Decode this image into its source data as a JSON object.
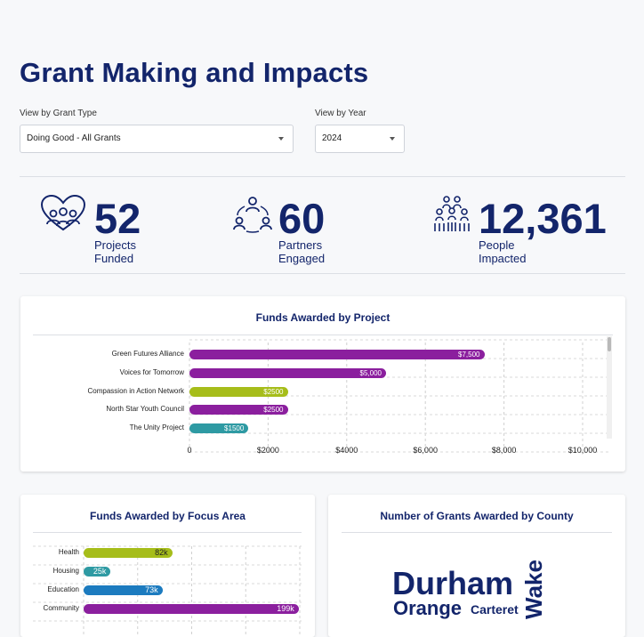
{
  "header": {
    "title": "Grant Making and Impacts"
  },
  "filters": {
    "grant_type": {
      "label": "View by Grant Type",
      "value": "Doing Good - All Grants"
    },
    "year": {
      "label": "View by Year",
      "value": "2024"
    }
  },
  "stats": [
    {
      "value": "52",
      "label": "Projects Funded",
      "icon": "heart-people-icon"
    },
    {
      "value": "60",
      "label": "Partners Engaged",
      "icon": "network-people-icon"
    },
    {
      "value": "12,361",
      "label": "People Impacted",
      "icon": "crowd-icon"
    }
  ],
  "colors": {
    "purple": "#8b1f9e",
    "green": "#a6bd1a",
    "teal": "#2e9aa3",
    "blue": "#1c7bbf",
    "navy": "#13256b"
  },
  "project_chart": {
    "title": "Funds Awarded by Project",
    "type": "bar",
    "xlim": [
      0,
      10000
    ],
    "ticks": [
      "0",
      "$2000",
      "$4000",
      "$6,000",
      "$8,000",
      "$10,000"
    ],
    "rows": [
      {
        "label": "Green Futures Alliance",
        "value": 7500,
        "display": "$7,500",
        "color": "#8b1f9e"
      },
      {
        "label": "Voices for Tomorrow",
        "value": 5000,
        "display": "$5,000",
        "color": "#8b1f9e"
      },
      {
        "label": "Compassion in Action Network",
        "value": 2500,
        "display": "$2500",
        "color": "#a6bd1a"
      },
      {
        "label": "North Star Youth Council",
        "value": 2500,
        "display": "$2500",
        "color": "#8b1f9e"
      },
      {
        "label": "The Unity Project",
        "value": 1500,
        "display": "$1500",
        "color": "#2e9aa3"
      }
    ]
  },
  "focus_chart": {
    "title": "Funds Awarded by Focus Area",
    "type": "bar",
    "xlim": [
      0,
      200000
    ],
    "rows": [
      {
        "label": "Health",
        "value": 82000,
        "display": "82k",
        "color": "#a6bd1a",
        "text_color": "#222222"
      },
      {
        "label": "Housing",
        "value": 25000,
        "display": "25k",
        "color": "#2e9aa3",
        "text_color": "#ffffff"
      },
      {
        "label": "Education",
        "value": 73000,
        "display": "73k",
        "color": "#1c7bbf",
        "text_color": "#ffffff"
      },
      {
        "label": "Community",
        "value": 199000,
        "display": "199k",
        "color": "#8b1f9e",
        "text_color": "#ffffff"
      }
    ]
  },
  "county_cloud": {
    "title": "Number of Grants Awarded by County",
    "words": [
      "Durham",
      "Orange",
      "Carteret",
      "Wake"
    ]
  }
}
